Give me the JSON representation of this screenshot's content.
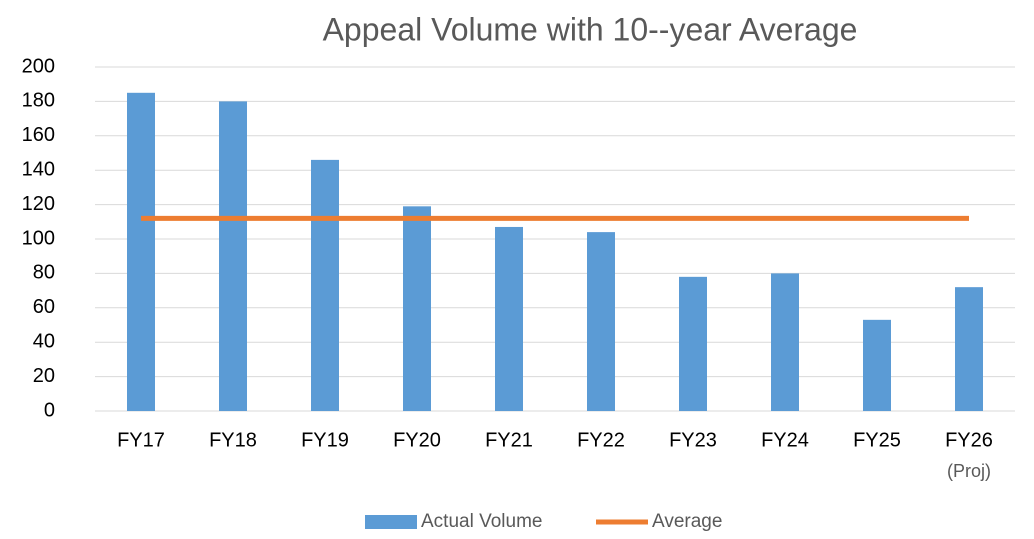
{
  "chart_data": {
    "type": "bar",
    "title": "Appeal Volume with 10--year Average",
    "categories": [
      "FY17",
      "FY18",
      "FY19",
      "FY20",
      "FY21",
      "FY22",
      "FY23",
      "FY24",
      "FY25",
      "FY26"
    ],
    "annotations": [
      "(Proj)"
    ],
    "series": [
      {
        "name": "Actual Volume",
        "type": "bar",
        "color": "#5b9bd5",
        "values": [
          185,
          180,
          146,
          119,
          107,
          104,
          78,
          80,
          53,
          72
        ]
      },
      {
        "name": "Average",
        "type": "line",
        "color": "#ed7d31",
        "values": [
          112,
          112,
          112,
          112,
          112,
          112,
          112,
          112,
          112,
          112
        ]
      }
    ],
    "ylim": [
      0,
      200
    ],
    "yticks": [
      0,
      20,
      40,
      60,
      80,
      100,
      120,
      140,
      160,
      180,
      200
    ],
    "grid": true,
    "legend": "bottom"
  }
}
